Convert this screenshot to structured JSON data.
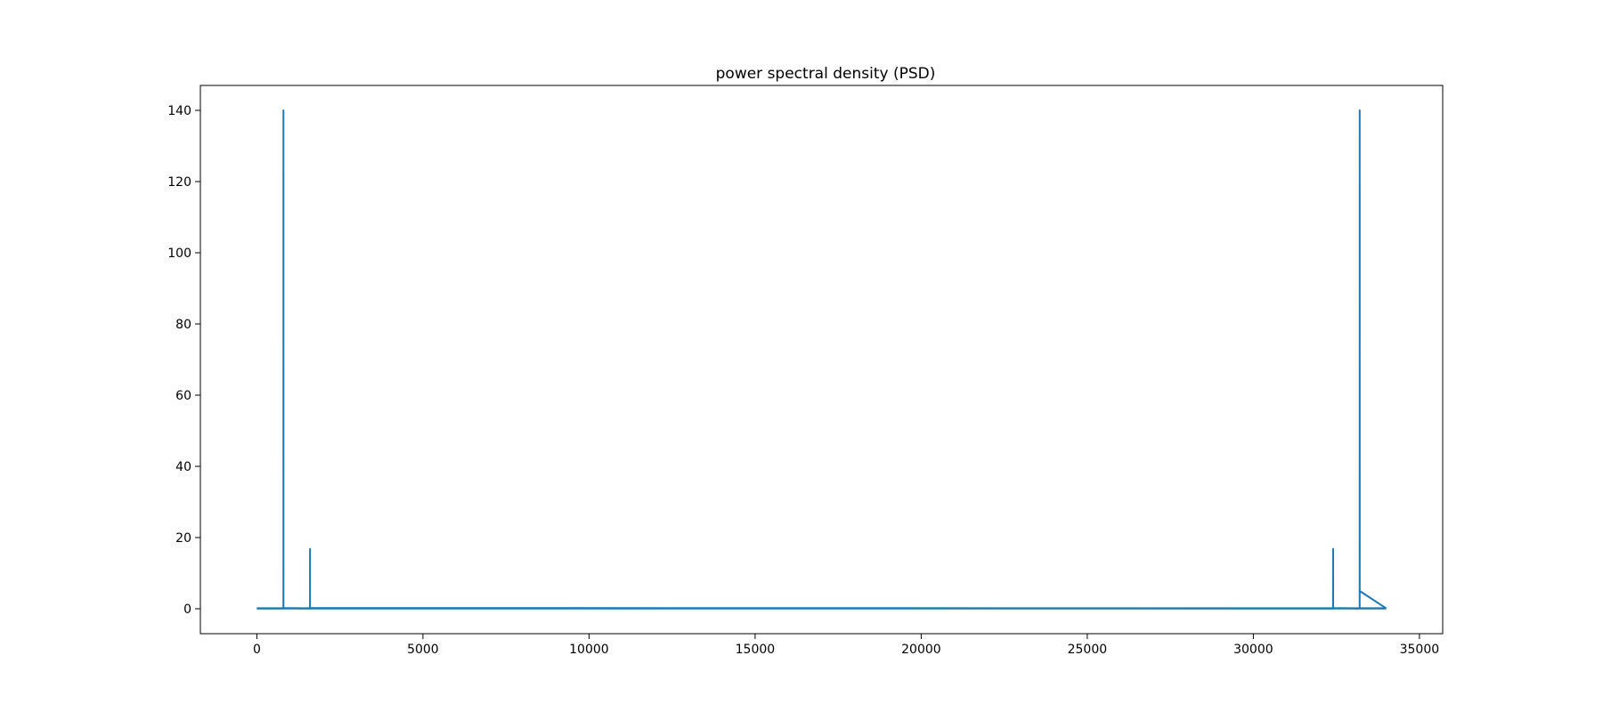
{
  "chart_data": {
    "type": "line",
    "title": "power spectral density (PSD)",
    "xlabel": "",
    "ylabel": "",
    "xlim": [
      -1700,
      35700
    ],
    "ylim": [
      -7,
      147
    ],
    "x_ticks": [
      0,
      5000,
      10000,
      15000,
      20000,
      25000,
      30000,
      35000
    ],
    "y_ticks": [
      0,
      20,
      40,
      60,
      80,
      100,
      120,
      140
    ],
    "grid": false,
    "legend": "none",
    "series": [
      {
        "color": "#1f77b4",
        "x": [
          0,
          799,
          800,
          801,
          802,
          1599,
          1600,
          1601,
          1602,
          32399,
          32400,
          32401,
          32402,
          33199,
          33200,
          33201,
          33202,
          34000
        ],
        "y": [
          0.1,
          0.1,
          5,
          140,
          0.2,
          0.1,
          0.5,
          16.8,
          0.2,
          0.1,
          8,
          16.8,
          0.2,
          0.1,
          0.2,
          140,
          5,
          0.1
        ]
      }
    ]
  }
}
